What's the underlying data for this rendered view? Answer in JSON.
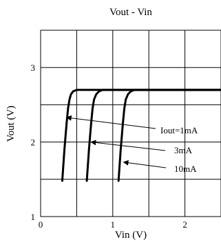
{
  "chart_data": {
    "type": "line",
    "title": "Vout - Vin",
    "xlabel": "Vin (V)",
    "ylabel": "Vout (V)",
    "xlim": [
      0,
      2.5
    ],
    "ylim": [
      1,
      3.5
    ],
    "xticks": [
      0,
      0.5,
      1,
      1.5,
      2,
      2.5
    ],
    "yticks": [
      1,
      1.5,
      2,
      2.5,
      3,
      3.5
    ],
    "xtick_labels": [
      {
        "value": 0,
        "label": "0"
      },
      {
        "value": 1,
        "label": "1"
      },
      {
        "value": 2,
        "label": "2"
      }
    ],
    "ytick_labels": [
      {
        "value": 1,
        "label": "1"
      },
      {
        "value": 2,
        "label": "2"
      },
      {
        "value": 3,
        "label": "3"
      }
    ],
    "grid": true,
    "line_color": "#000000",
    "series": [
      {
        "name": "Iout=1mA",
        "x": [
          0.3,
          0.33,
          0.36,
          0.38,
          0.4,
          0.42,
          0.45,
          0.5,
          0.55,
          0.6,
          0.8,
          1.0,
          1.5,
          2.0,
          2.5
        ],
        "y": [
          1.48,
          1.9,
          2.25,
          2.45,
          2.57,
          2.64,
          2.68,
          2.7,
          2.7,
          2.7,
          2.7,
          2.7,
          2.7,
          2.7,
          2.7
        ]
      },
      {
        "name": "3mA",
        "x": [
          0.64,
          0.67,
          0.7,
          0.72,
          0.74,
          0.77,
          0.81,
          0.86,
          0.92,
          1.0,
          1.5,
          2.0,
          2.5
        ],
        "y": [
          1.48,
          1.9,
          2.25,
          2.45,
          2.57,
          2.64,
          2.68,
          2.7,
          2.7,
          2.7,
          2.7,
          2.7,
          2.7
        ]
      },
      {
        "name": "10mA",
        "x": [
          1.08,
          1.11,
          1.14,
          1.16,
          1.18,
          1.21,
          1.25,
          1.3,
          1.4,
          1.6,
          2.0,
          2.5
        ],
        "y": [
          1.48,
          1.9,
          2.25,
          2.45,
          2.57,
          2.64,
          2.68,
          2.7,
          2.7,
          2.7,
          2.7,
          2.7
        ]
      }
    ],
    "annotations": [
      {
        "text": "Iout=1mA",
        "series": "Iout=1mA",
        "arrow_to": [
          0.36,
          2.33
        ]
      },
      {
        "text": "3mA",
        "series": "3mA",
        "arrow_to": [
          0.7,
          2.0
        ]
      },
      {
        "text": "10mA",
        "series": "10mA",
        "arrow_to": [
          1.15,
          1.73
        ]
      }
    ]
  }
}
